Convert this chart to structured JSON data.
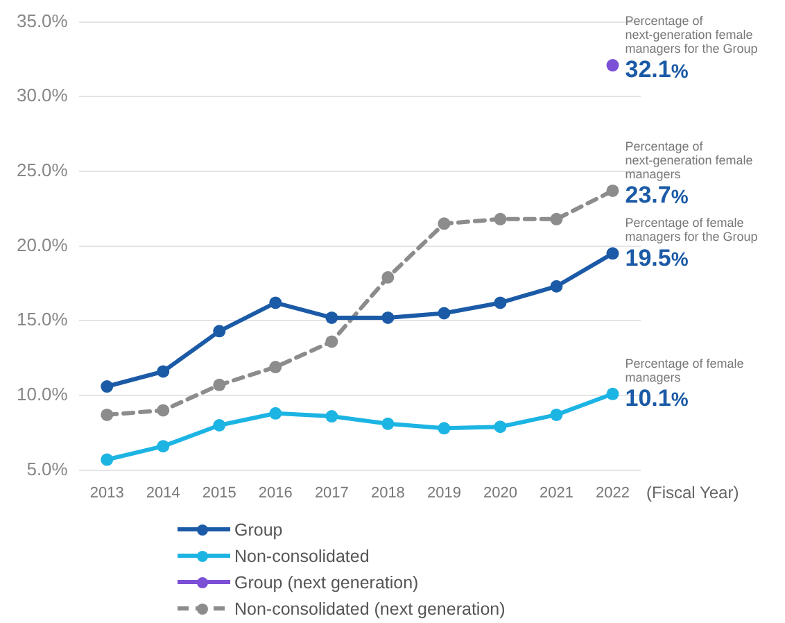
{
  "chart_data": {
    "type": "line",
    "xlabel": "(Fiscal Year)",
    "categories": [
      "2013",
      "2014",
      "2015",
      "2016",
      "2017",
      "2018",
      "2019",
      "2020",
      "2021",
      "2022"
    ],
    "series": [
      {
        "name": "Group",
        "color": "#1b5aa6",
        "values": [
          10.6,
          11.6,
          14.3,
          16.2,
          15.2,
          15.2,
          15.5,
          16.2,
          17.3,
          19.5
        ],
        "value_labels": [
          null,
          null,
          null,
          null,
          null,
          null,
          null,
          null,
          null,
          "19.5%"
        ]
      },
      {
        "name": "Non-consolidated",
        "color": "#1cb4e3",
        "values": [
          5.7,
          6.6,
          8.0,
          8.8,
          8.6,
          8.1,
          7.8,
          7.9,
          8.7,
          10.1
        ],
        "value_labels": [
          null,
          null,
          null,
          null,
          null,
          null,
          null,
          null,
          null,
          "10.1%"
        ]
      },
      {
        "name": "Group (next generation)",
        "color": "#7b4fd6",
        "values": [
          null,
          null,
          null,
          null,
          null,
          null,
          null,
          null,
          null,
          32.1
        ],
        "value_labels": [
          null,
          null,
          null,
          null,
          null,
          null,
          null,
          null,
          null,
          "32.1%"
        ]
      },
      {
        "name": "Non-consolidated (next generation)",
        "color": "#8c8c8c",
        "line_style": "dashed",
        "values": [
          8.7,
          9.0,
          10.7,
          11.9,
          13.6,
          17.9,
          21.5,
          21.8,
          21.8,
          23.7
        ],
        "value_labels": [
          null,
          null,
          null,
          null,
          null,
          null,
          null,
          null,
          null,
          "23.7%"
        ]
      }
    ],
    "annotations": [
      {
        "text": "Percentage of next-generation female managers for the Group",
        "x": "2022",
        "y": 32.1
      },
      {
        "text": "Percentage of next-generation female managers",
        "x": "2022",
        "y": 23.7
      },
      {
        "text": "Percentage of female managers for the Group",
        "x": "2022",
        "y": 19.5
      },
      {
        "text": "Percentage of female managers",
        "x": "2022",
        "y": 10.1
      }
    ],
    "ylim": [
      5,
      35
    ],
    "yticks": [
      {
        "value": 5,
        "label": "5.0%"
      },
      {
        "value": 10,
        "label": "10.0%"
      },
      {
        "value": 15,
        "label": "15.0%"
      },
      {
        "value": 20,
        "label": "20.0%"
      },
      {
        "value": 25,
        "label": "25.0%"
      },
      {
        "value": 30,
        "label": "30.0%"
      },
      {
        "value": 35,
        "label": "35.0%"
      }
    ],
    "grid": "y",
    "legend": "bottom left",
    "marker": "circle",
    "line_style": "solid"
  }
}
